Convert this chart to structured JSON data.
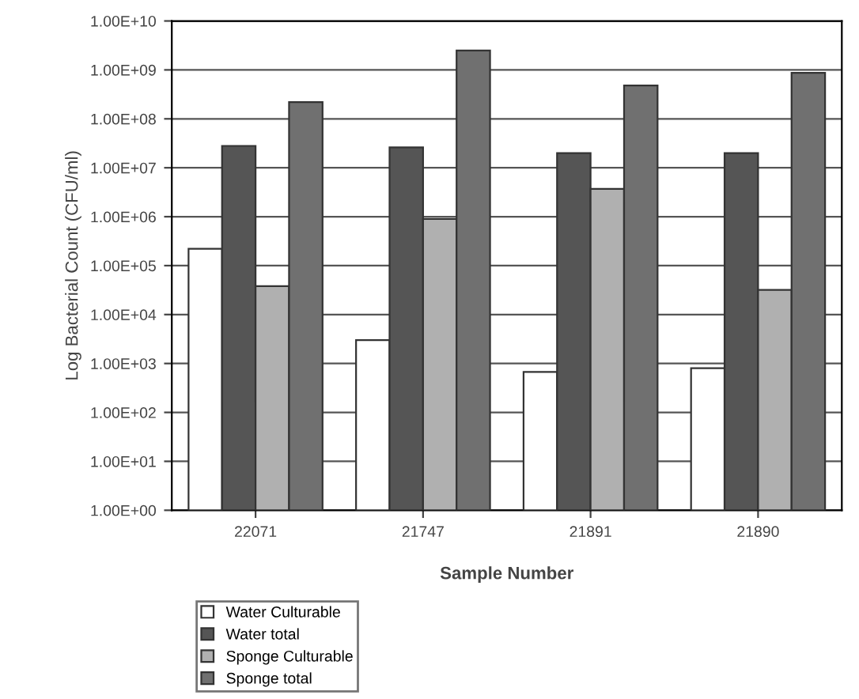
{
  "chart_data": {
    "type": "bar",
    "xlabel": "Sample Number",
    "ylabel": "Log Bacterial Count (CFU/ml)",
    "categories": [
      "22071",
      "21747",
      "21891",
      "21890"
    ],
    "series": [
      {
        "name": "Water Culturable",
        "color": "#ffffff",
        "values": [
          220000,
          3000,
          670,
          800
        ]
      },
      {
        "name": "Water total",
        "color": "#555555",
        "values": [
          28000000,
          26000000,
          20000000,
          20000000
        ]
      },
      {
        "name": "Sponge Culturable",
        "color": "#b0b0b0",
        "values": [
          38000,
          900000,
          3700000,
          32000
        ]
      },
      {
        "name": "Sponge total",
        "color": "#707070",
        "values": [
          220000000,
          2500000000,
          480000000,
          870000000
        ]
      }
    ],
    "log": "y",
    "ylim": [
      1,
      10000000000
    ],
    "yticks": [
      {
        "value": 1,
        "label": "1.00E+00"
      },
      {
        "value": 10,
        "label": "1.00E+01"
      },
      {
        "value": 100,
        "label": "1.00E+02"
      },
      {
        "value": 1000,
        "label": "1.00E+03"
      },
      {
        "value": 10000,
        "label": "1.00E+04"
      },
      {
        "value": 100000,
        "label": "1.00E+05"
      },
      {
        "value": 1000000,
        "label": "1.00E+06"
      },
      {
        "value": 10000000,
        "label": "1.00E+07"
      },
      {
        "value": 100000000,
        "label": "1.00E+08"
      },
      {
        "value": 1000000000,
        "label": "1.00E+09"
      },
      {
        "value": 10000000000,
        "label": "1.00E+10"
      }
    ],
    "grid": "y",
    "legend": "bottom left"
  }
}
